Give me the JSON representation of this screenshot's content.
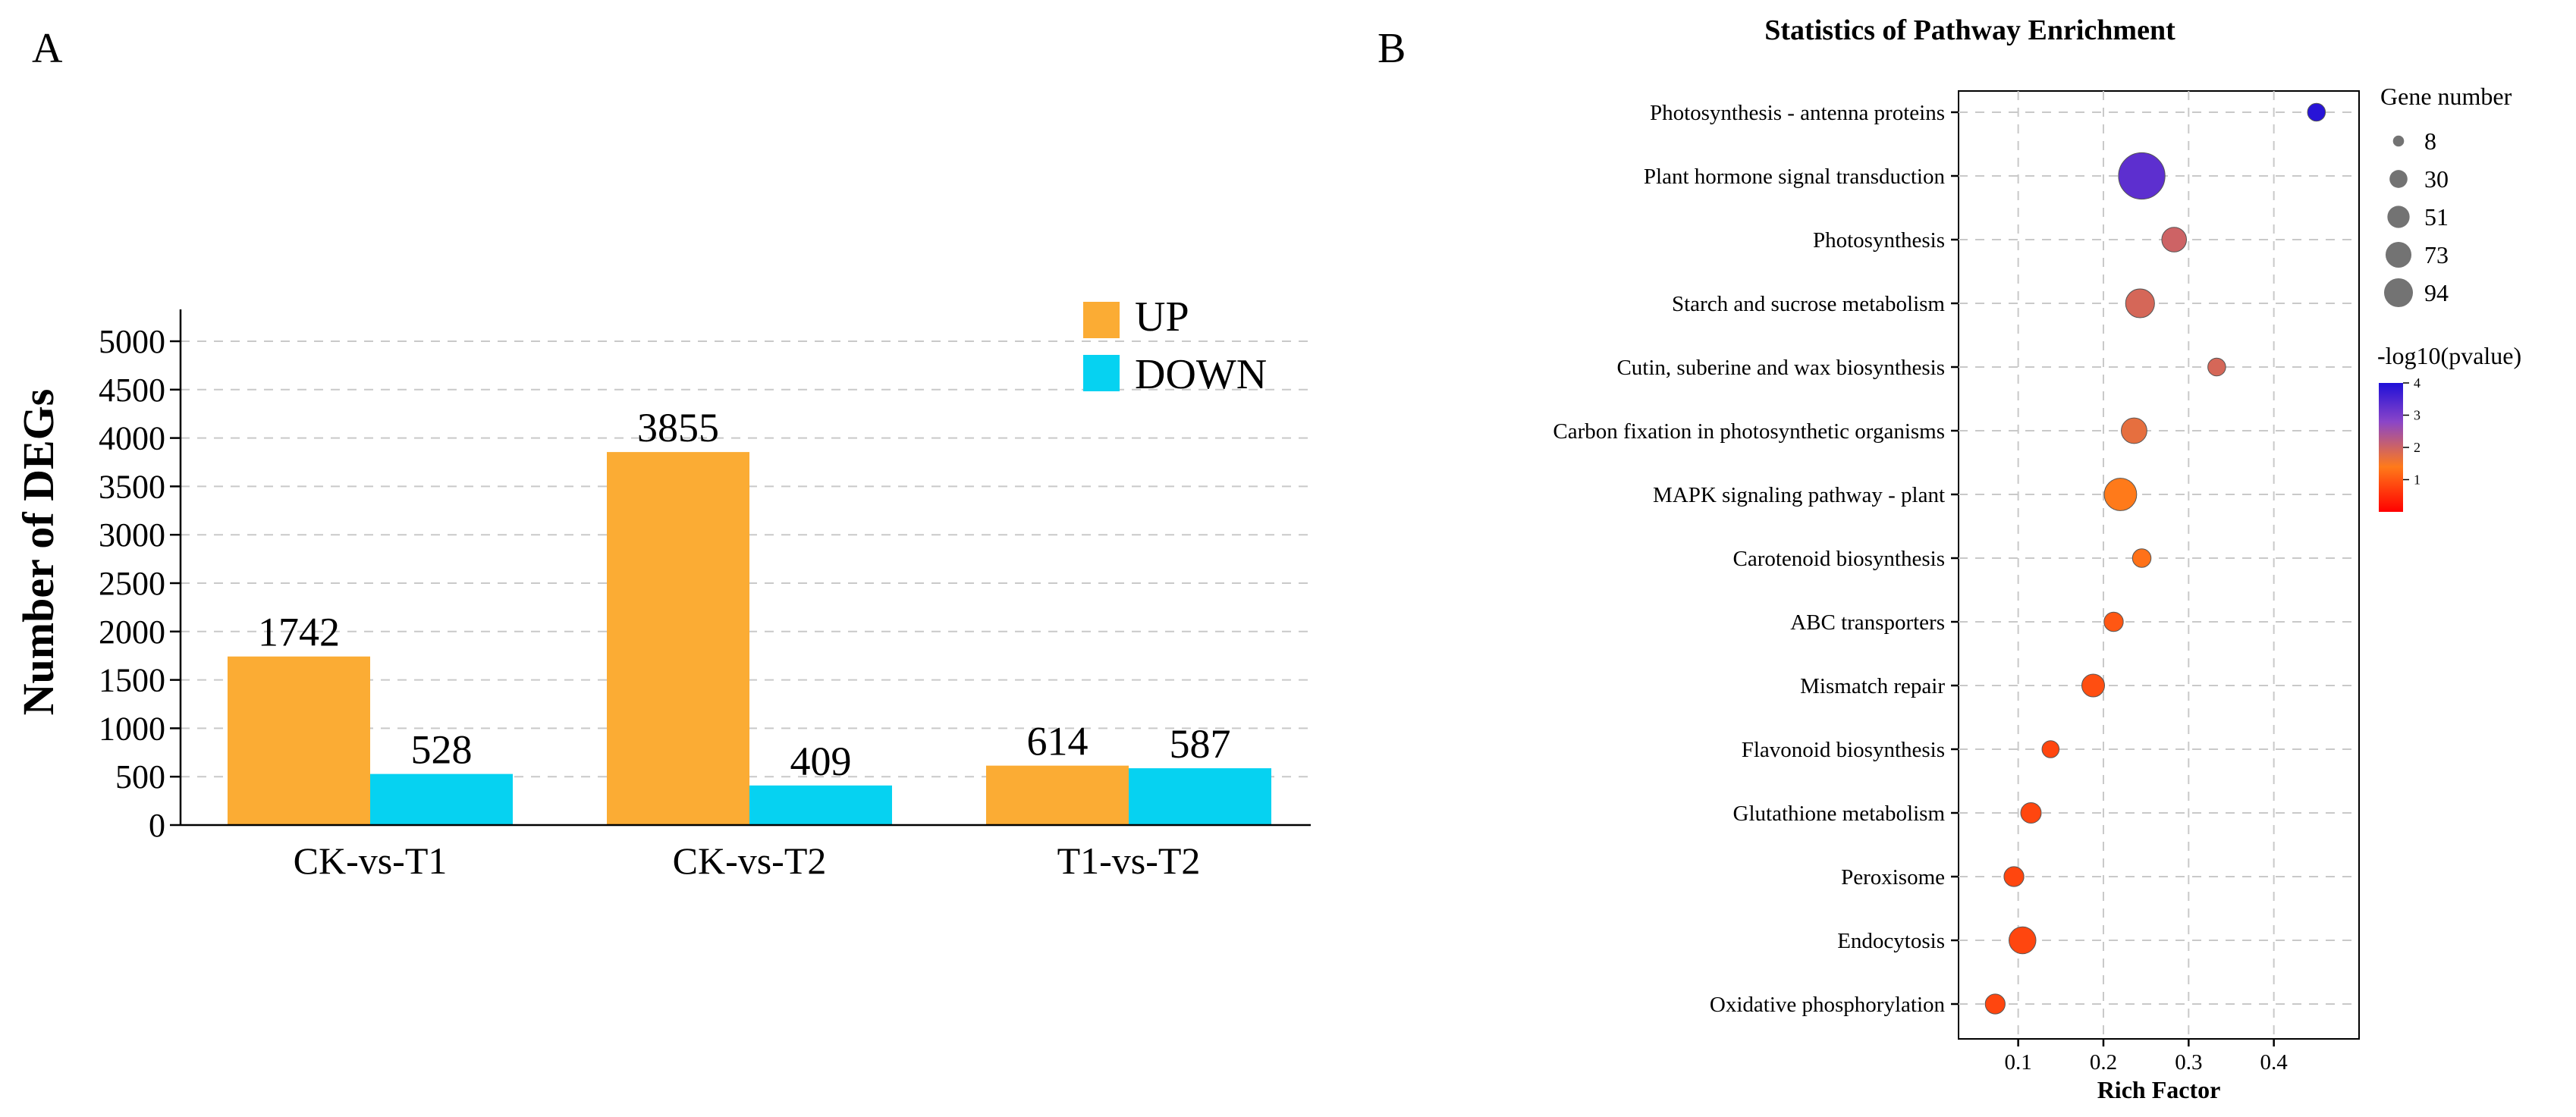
{
  "panels": {
    "a": "A",
    "b": "B"
  },
  "chart_data": [
    {
      "type": "bar",
      "ylabel": "Number of DEGs",
      "ylim": [
        0,
        5000
      ],
      "yticks": [
        0,
        500,
        1000,
        1500,
        2000,
        2500,
        3000,
        3500,
        4000,
        4500,
        5000
      ],
      "categories": [
        "CK-vs-T1",
        "CK-vs-T2",
        "T1-vs-T2"
      ],
      "series": [
        {
          "name": "UP",
          "values": [
            1742,
            3855,
            614
          ],
          "color": "#fbac34"
        },
        {
          "name": "DOWN",
          "values": [
            528,
            409,
            587
          ],
          "color": "#06d2f1"
        }
      ],
      "legend": "top-right",
      "grid": true
    },
    {
      "type": "scatter",
      "title": "Statistics of Pathway Enrichment",
      "xlabel": "Rich Factor",
      "xlim": [
        0.03,
        0.5
      ],
      "xticks": [
        "0.1",
        "0.2",
        "0.3",
        "0.4"
      ],
      "grid": true,
      "points": [
        {
          "pathway": "Photosynthesis - antenna proteins",
          "rich_factor": 0.45,
          "gene_number": 8,
          "neg_log10_pvalue": 3.9
        },
        {
          "pathway": "Plant hormone signal transduction",
          "rich_factor": 0.245,
          "gene_number": 94,
          "neg_log10_pvalue": 3.3
        },
        {
          "pathway": "Photosynthesis",
          "rich_factor": 0.283,
          "gene_number": 20,
          "neg_log10_pvalue": 2.0
        },
        {
          "pathway": "Starch and sucrose metabolism",
          "rich_factor": 0.243,
          "gene_number": 30,
          "neg_log10_pvalue": 1.9
        },
        {
          "pathway": "Cutin, suberine and wax biosynthesis",
          "rich_factor": 0.333,
          "gene_number": 8,
          "neg_log10_pvalue": 1.9
        },
        {
          "pathway": "Carbon fixation in photosynthetic organisms",
          "rich_factor": 0.236,
          "gene_number": 22,
          "neg_log10_pvalue": 1.7
        },
        {
          "pathway": "MAPK signaling pathway - plant",
          "rich_factor": 0.22,
          "gene_number": 40,
          "neg_log10_pvalue": 1.4
        },
        {
          "pathway": "Carotenoid biosynthesis",
          "rich_factor": 0.245,
          "gene_number": 9,
          "neg_log10_pvalue": 1.3
        },
        {
          "pathway": "ABC transporters",
          "rich_factor": 0.212,
          "gene_number": 10,
          "neg_log10_pvalue": 1.0
        },
        {
          "pathway": "Mismatch repair",
          "rich_factor": 0.188,
          "gene_number": 16,
          "neg_log10_pvalue": 0.9
        },
        {
          "pathway": "Flavonoid biosynthesis",
          "rich_factor": 0.138,
          "gene_number": 7,
          "neg_log10_pvalue": 0.8
        },
        {
          "pathway": "Glutathione metabolism",
          "rich_factor": 0.115,
          "gene_number": 12,
          "neg_log10_pvalue": 0.8
        },
        {
          "pathway": "Peroxisome",
          "rich_factor": 0.095,
          "gene_number": 11,
          "neg_log10_pvalue": 0.8
        },
        {
          "pathway": "Endocytosis",
          "rich_factor": 0.105,
          "gene_number": 25,
          "neg_log10_pvalue": 0.8
        },
        {
          "pathway": "Oxidative phosphorylation",
          "rich_factor": 0.073,
          "gene_number": 11,
          "neg_log10_pvalue": 0.8
        }
      ],
      "size_legend": {
        "title": "Gene number",
        "values": [
          8,
          30,
          51,
          73,
          94
        ]
      },
      "color_legend": {
        "title": "-log10(pvalue)",
        "ticks": [
          1,
          2,
          3,
          4
        ],
        "range": [
          0,
          4
        ],
        "colors": [
          "#ff0000",
          "#ff7a1a",
          "#8a45c8",
          "#1f10d8"
        ]
      }
    }
  ]
}
